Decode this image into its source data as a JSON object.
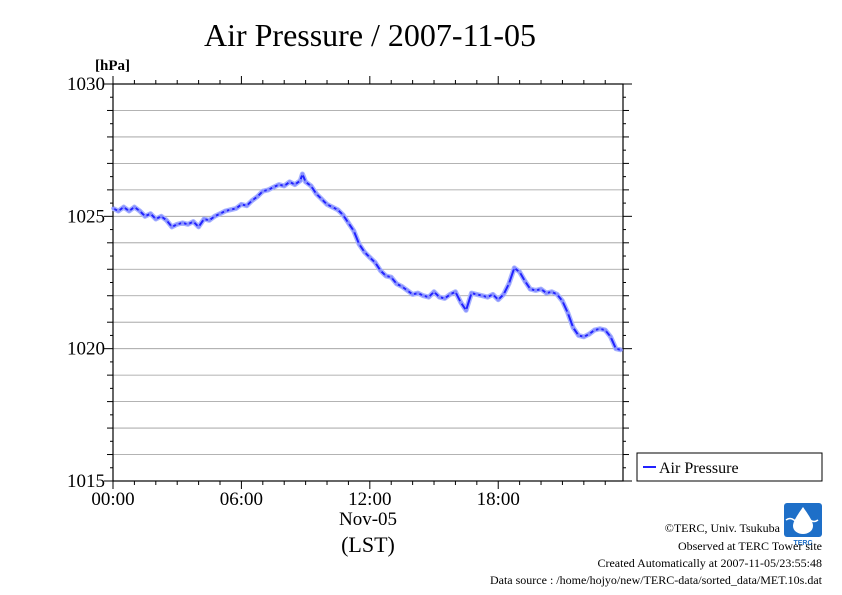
{
  "chart_data": {
    "type": "line",
    "title": "Air Pressure / 2007-11-05",
    "ylabel": "[hPa]",
    "ylim": [
      1015,
      1030
    ],
    "yticks": [
      "1030",
      "1025",
      "1020",
      "1015"
    ],
    "xlim_hours": [
      0,
      23.83
    ],
    "xticks": [
      "00:00",
      "06:00",
      "12:00",
      "18:00"
    ],
    "x_date_label": "Nov-05",
    "x_unit_label": "(LST)",
    "grid": true,
    "legend_position": "right",
    "series": [
      {
        "name": "Air Pressure",
        "color": "#2222ff",
        "points": [
          [
            0.0,
            1025.3
          ],
          [
            0.25,
            1025.2
          ],
          [
            0.5,
            1025.35
          ],
          [
            0.75,
            1025.2
          ],
          [
            1.0,
            1025.35
          ],
          [
            1.25,
            1025.2
          ],
          [
            1.5,
            1025.0
          ],
          [
            1.75,
            1025.1
          ],
          [
            2.0,
            1024.9
          ],
          [
            2.25,
            1025.0
          ],
          [
            2.5,
            1024.85
          ],
          [
            2.75,
            1024.6
          ],
          [
            3.0,
            1024.7
          ],
          [
            3.25,
            1024.75
          ],
          [
            3.5,
            1024.7
          ],
          [
            3.75,
            1024.8
          ],
          [
            4.0,
            1024.6
          ],
          [
            4.25,
            1024.9
          ],
          [
            4.5,
            1024.85
          ],
          [
            4.75,
            1025.0
          ],
          [
            5.0,
            1025.1
          ],
          [
            5.25,
            1025.2
          ],
          [
            5.5,
            1025.25
          ],
          [
            5.75,
            1025.3
          ],
          [
            6.0,
            1025.45
          ],
          [
            6.25,
            1025.4
          ],
          [
            6.5,
            1025.6
          ],
          [
            6.75,
            1025.75
          ],
          [
            7.0,
            1025.95
          ],
          [
            7.25,
            1026.0
          ],
          [
            7.5,
            1026.1
          ],
          [
            7.75,
            1026.2
          ],
          [
            8.0,
            1026.15
          ],
          [
            8.25,
            1026.3
          ],
          [
            8.5,
            1026.2
          ],
          [
            8.75,
            1026.35
          ],
          [
            8.85,
            1026.6
          ],
          [
            9.0,
            1026.3
          ],
          [
            9.25,
            1026.15
          ],
          [
            9.5,
            1025.85
          ],
          [
            9.75,
            1025.65
          ],
          [
            10.0,
            1025.45
          ],
          [
            10.25,
            1025.35
          ],
          [
            10.5,
            1025.25
          ],
          [
            10.75,
            1025.05
          ],
          [
            11.0,
            1024.75
          ],
          [
            11.25,
            1024.45
          ],
          [
            11.5,
            1023.95
          ],
          [
            11.75,
            1023.65
          ],
          [
            12.0,
            1023.45
          ],
          [
            12.25,
            1023.25
          ],
          [
            12.5,
            1022.95
          ],
          [
            12.75,
            1022.75
          ],
          [
            13.0,
            1022.7
          ],
          [
            13.25,
            1022.45
          ],
          [
            13.5,
            1022.35
          ],
          [
            13.75,
            1022.2
          ],
          [
            14.0,
            1022.05
          ],
          [
            14.25,
            1022.1
          ],
          [
            14.5,
            1022.0
          ],
          [
            14.75,
            1021.95
          ],
          [
            15.0,
            1022.15
          ],
          [
            15.25,
            1021.95
          ],
          [
            15.5,
            1021.9
          ],
          [
            15.75,
            1022.05
          ],
          [
            16.0,
            1022.15
          ],
          [
            16.25,
            1021.75
          ],
          [
            16.5,
            1021.45
          ],
          [
            16.75,
            1022.1
          ],
          [
            17.0,
            1022.05
          ],
          [
            17.25,
            1022.0
          ],
          [
            17.5,
            1021.95
          ],
          [
            17.75,
            1022.05
          ],
          [
            18.0,
            1021.85
          ],
          [
            18.25,
            1022.05
          ],
          [
            18.5,
            1022.45
          ],
          [
            18.75,
            1023.05
          ],
          [
            19.0,
            1022.9
          ],
          [
            19.25,
            1022.55
          ],
          [
            19.5,
            1022.25
          ],
          [
            19.75,
            1022.2
          ],
          [
            20.0,
            1022.25
          ],
          [
            20.25,
            1022.1
          ],
          [
            20.5,
            1022.15
          ],
          [
            20.75,
            1022.05
          ],
          [
            21.0,
            1021.8
          ],
          [
            21.25,
            1021.35
          ],
          [
            21.5,
            1020.8
          ],
          [
            21.75,
            1020.5
          ],
          [
            22.0,
            1020.45
          ],
          [
            22.25,
            1020.55
          ],
          [
            22.5,
            1020.7
          ],
          [
            22.75,
            1020.75
          ],
          [
            23.0,
            1020.7
          ],
          [
            23.25,
            1020.45
          ],
          [
            23.5,
            1020.0
          ],
          [
            23.75,
            1019.95
          ]
        ]
      }
    ]
  },
  "credits": {
    "logo_text": "TERC",
    "line1": "©TERC, Univ. Tsukuba",
    "line2": "Observed at TERC Tower site",
    "line3": "Created Automatically at 2007-11-05/23:55:48",
    "line4": "Data source : /home/hojyo/new/TERC-data/sorted_data/MET.10s.dat"
  }
}
